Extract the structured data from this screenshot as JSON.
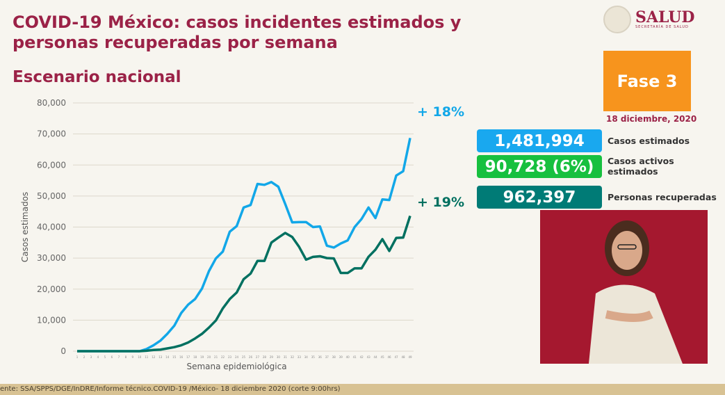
{
  "header": {
    "title": "COVID-19 México: casos incidentes estimados y personas recuperadas por semana",
    "subtitle": "Escenario nacional",
    "logo_text": "SALUD",
    "logo_subtext": "SECRETARÍA DE SALUD"
  },
  "phase": {
    "label": "Fase 3",
    "color": "#f7941d"
  },
  "date": "18 diciembre, 2020",
  "stats": [
    {
      "value": "1,481,994",
      "label": "Casos estimados",
      "color": "#19a8ef"
    },
    {
      "value": "90,728 (6%)",
      "label": "Casos activos estimados",
      "color": "#17c03f"
    },
    {
      "value": "962,397",
      "label": "Personas recuperadas",
      "color": "#007b76"
    }
  ],
  "footer": "ente: SSA/SPPS/DGE/InDRE/Informe técnico.COVID-19 /México- 18 diciembre 2020 (corte 9:00hrs)",
  "chart_data": {
    "type": "line",
    "xlabel": "Semana epidemiológica",
    "ylabel": "Casos estimados",
    "ylim": [
      0,
      80000
    ],
    "yticks": [
      "0",
      "10,000",
      "20,000",
      "30,000",
      "40,000",
      "50,000",
      "60,000",
      "70,000",
      "80,000"
    ],
    "grid": true,
    "x": [
      1,
      2,
      3,
      4,
      5,
      6,
      7,
      8,
      9,
      10,
      11,
      12,
      13,
      14,
      15,
      16,
      17,
      18,
      19,
      20,
      21,
      22,
      23,
      24,
      25,
      26,
      27,
      28,
      29,
      30,
      31,
      32,
      33,
      34,
      35,
      36,
      37,
      38,
      39,
      40,
      41,
      42,
      43,
      44,
      45,
      46,
      47,
      48,
      49
    ],
    "series": [
      {
        "color": "#12a7e8",
        "annotation": "+ 18%",
        "values": [
          0,
          0,
          0,
          0,
          0,
          0,
          0,
          0,
          0,
          0,
          700,
          1900,
          3400,
          5600,
          8200,
          12300,
          15000,
          16800,
          20200,
          25800,
          29900,
          32100,
          38500,
          40300,
          46300,
          47100,
          53900,
          53600,
          54500,
          53000,
          47400,
          41500,
          41600,
          41600,
          40000,
          40200,
          34000,
          33400,
          34700,
          35700,
          40000,
          42600,
          46300,
          42900,
          48900,
          48700,
          56600,
          58000,
          68700
        ]
      },
      {
        "color": "#007060",
        "annotation": "+ 19%",
        "values": [
          0,
          0,
          0,
          0,
          0,
          0,
          0,
          0,
          0,
          0,
          150,
          400,
          500,
          900,
          1300,
          1900,
          2800,
          4100,
          5600,
          7600,
          9900,
          13800,
          16800,
          18900,
          23200,
          25000,
          29100,
          29100,
          35000,
          36600,
          38100,
          36800,
          33600,
          29500,
          30400,
          30600,
          30000,
          29900,
          25200,
          25200,
          26700,
          26700,
          30400,
          32700,
          36100,
          32300,
          36500,
          36600,
          43600
        ]
      }
    ]
  }
}
